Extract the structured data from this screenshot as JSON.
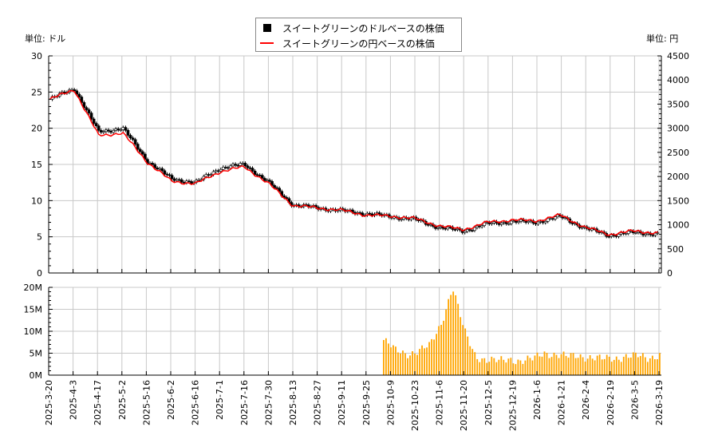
{
  "legend": {
    "items": [
      {
        "label": "スイートグリーンのドルベースの株価",
        "swatch": "black-square",
        "color": "#000000"
      },
      {
        "label": "スイートグリーンの円ベースの株価",
        "swatch": "red-line",
        "color": "#ff0000"
      }
    ]
  },
  "axes": {
    "left_unit": "単位: ドル",
    "right_unit": "単位: 円",
    "left_ticks": [
      "0",
      "5",
      "10",
      "15",
      "20",
      "25",
      "30"
    ],
    "right_ticks": [
      "0",
      "500",
      "1000",
      "1500",
      "2000",
      "2500",
      "3000",
      "3500",
      "4000",
      "4500"
    ],
    "volume_ticks": [
      "0M",
      "5M",
      "10M",
      "15M",
      "20M"
    ],
    "x_ticks": [
      "2025-3-20",
      "2025-4-3",
      "2025-4-17",
      "2025-5-2",
      "2025-5-16",
      "2025-6-2",
      "2025-6-16",
      "2025-7-1",
      "2025-7-16",
      "2025-7-30",
      "2025-8-13",
      "2025-8-27",
      "2025-9-11",
      "2025-9-25",
      "2025-10-9",
      "2025-10-23",
      "2025-11-6",
      "2025-11-20",
      "2025-12-5",
      "2025-12-19",
      "2026-1-6",
      "2026-1-21",
      "2026-2-4",
      "2026-2-19",
      "2026-3-5",
      "2026-3-19"
    ]
  },
  "colors": {
    "candle": "#000000",
    "yen_line": "#ff0000",
    "volume": "#ffa500",
    "grid": "#c8c8c8"
  },
  "chart_data": [
    {
      "type": "line",
      "title": "スイートグリーンの株価 (ドル / 円)",
      "xlabel": "",
      "ylabel": "単位: ドル",
      "ylabel_right": "単位: 円",
      "ylim": [
        0,
        30
      ],
      "ylim_right": [
        0,
        4500
      ],
      "grid": true,
      "legend_position": "top-center",
      "x": [
        "2025-3-20",
        "2025-4-3",
        "2025-4-17",
        "2025-5-2",
        "2025-5-16",
        "2025-6-2",
        "2025-6-16",
        "2025-7-1",
        "2025-7-16",
        "2025-7-30",
        "2025-8-13",
        "2025-8-27",
        "2025-9-11",
        "2025-9-25",
        "2025-10-9",
        "2025-10-23",
        "2025-11-6",
        "2025-11-20",
        "2025-12-5",
        "2025-12-19",
        "2026-1-6",
        "2026-1-21",
        "2026-2-4",
        "2026-2-19",
        "2026-3-5",
        "2026-3-19"
      ],
      "series": [
        {
          "name": "スイートグリーンのドルベースの株価",
          "axis": "left",
          "values": [
            24.0,
            25.5,
            19.5,
            20.0,
            15.5,
            13.0,
            12.5,
            14.5,
            15.0,
            12.5,
            9.4,
            9.0,
            8.6,
            8.2,
            7.8,
            7.4,
            6.3,
            5.8,
            6.8,
            7.1,
            7.0,
            7.8,
            6.2,
            5.2,
            5.6,
            5.4
          ]
        },
        {
          "name": "スイートグリーンの円ベースの株価",
          "axis": "right",
          "values": [
            3600,
            3800,
            2850,
            2900,
            2300,
            1900,
            1850,
            2100,
            2200,
            1850,
            1400,
            1350,
            1300,
            1200,
            1180,
            1130,
            980,
            900,
            1050,
            1100,
            1080,
            1200,
            950,
            800,
            870,
            830
          ]
        }
      ]
    },
    {
      "type": "bar",
      "title": "出来高",
      "ylabel": "",
      "ylim": [
        0,
        20000000
      ],
      "grid": true,
      "categories": [
        "2025-10-6",
        "2025-10-9",
        "2025-10-16",
        "2025-10-23",
        "2025-10-30",
        "2025-11-6",
        "2025-11-7",
        "2025-11-13",
        "2025-11-20",
        "2025-11-27",
        "2025-12-5",
        "2025-12-12",
        "2025-12-19",
        "2025-12-26",
        "2026-1-6",
        "2026-1-13",
        "2026-1-21",
        "2026-1-28",
        "2026-2-4",
        "2026-2-11",
        "2026-2-19",
        "2026-2-26",
        "2026-3-5",
        "2026-3-12",
        "2026-3-19"
      ],
      "values": [
        8000000,
        5500000,
        5000000,
        5500000,
        6500000,
        11800000,
        20200000,
        10000000,
        4500000,
        3500000,
        3000000,
        3800000,
        3300000,
        3500000,
        5200000,
        4800000,
        4000000,
        4500000,
        4200000,
        3500000,
        3800000,
        4500000,
        4200000,
        3800000,
        5000000
      ]
    }
  ]
}
